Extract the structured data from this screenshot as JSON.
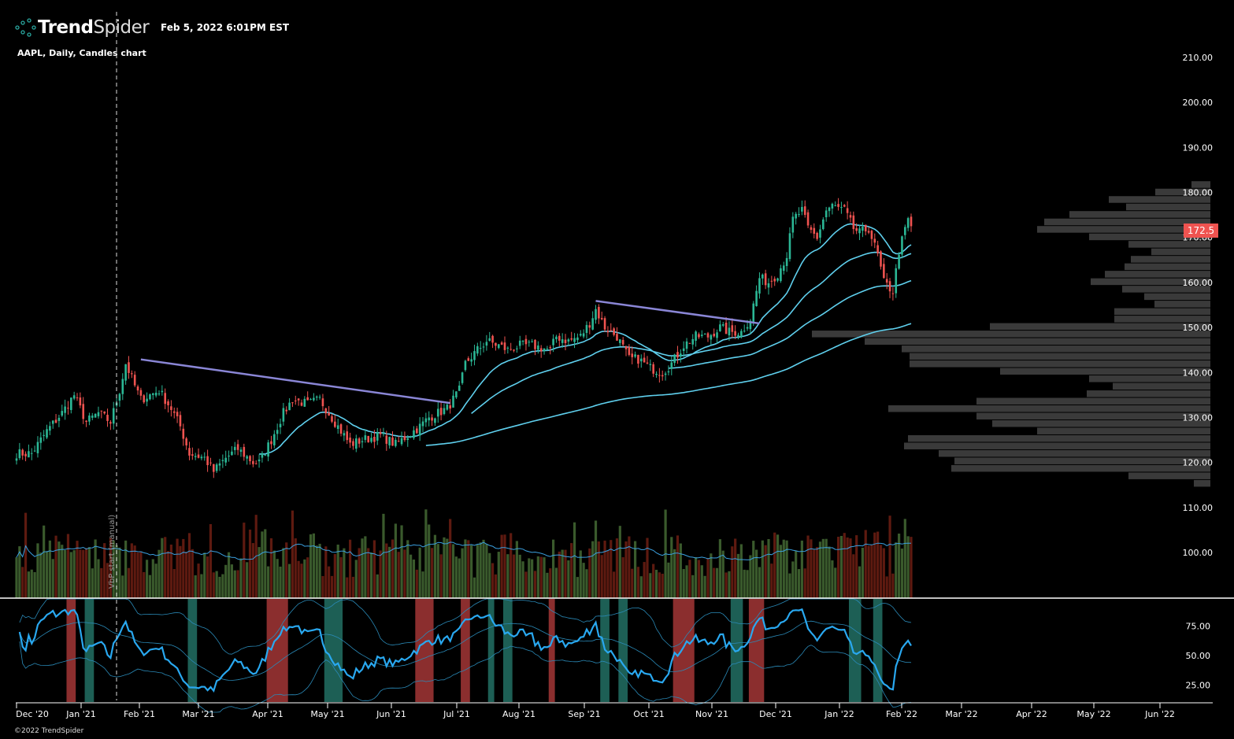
{
  "header": {
    "brand_bold": "Trend",
    "brand_light": "Spider",
    "timestamp": "Feb 5, 2022 6:01PM EST",
    "subtitle": "AAPL, Daily, Candles chart",
    "copyright": "©2022 TrendSpider"
  },
  "colors": {
    "up": "#2bb795",
    "down": "#ef5350",
    "vol_up": "#3a5a2c",
    "vol_down": "#5e1a10",
    "ma": "#5fd0ee",
    "trendline": "#8a86d6",
    "osc": "#29a8f0",
    "vbp": "#3a3a3a",
    "price_badge": "#ef5350",
    "shade_red": "#8b2e2e",
    "shade_teal": "#1d5f55"
  },
  "chart_data": {
    "type": "candlestick",
    "symbol": "AAPL",
    "interval": "Daily",
    "last_price": "172.5",
    "price_axis": {
      "min": 100,
      "max": 210,
      "ticks": [
        "210.00",
        "200.00",
        "190.00",
        "180.00",
        "170.00",
        "160.00",
        "150.00",
        "140.00",
        "130.00",
        "120.00",
        "110.00",
        "100.00"
      ]
    },
    "time_axis": {
      "labels": [
        "Dec '20",
        "Jan '21",
        "Feb '21",
        "Mar '21",
        "Apr '21",
        "May '21",
        "Jun '21",
        "Jul '21",
        "Aug '21",
        "Sep '21",
        "Oct '21",
        "Nov '21",
        "Dec '21",
        "Jan '22",
        "Feb '22",
        "Mar '22",
        "Apr '22",
        "May '22",
        "Jun '22"
      ]
    },
    "trading_days": 296,
    "close_anchors": [
      [
        0,
        122
      ],
      [
        5,
        122
      ],
      [
        10,
        127
      ],
      [
        15,
        131
      ],
      [
        19,
        135
      ],
      [
        23,
        129
      ],
      [
        27,
        131
      ],
      [
        31,
        129
      ],
      [
        34,
        136
      ],
      [
        36,
        142
      ],
      [
        39,
        137
      ],
      [
        41,
        134
      ],
      [
        47,
        136
      ],
      [
        51,
        132
      ],
      [
        54,
        128
      ],
      [
        57,
        122
      ],
      [
        62,
        121
      ],
      [
        65,
        118
      ],
      [
        69,
        121
      ],
      [
        73,
        123
      ],
      [
        78,
        120
      ],
      [
        80,
        120
      ],
      [
        84,
        125
      ],
      [
        88,
        131
      ],
      [
        91,
        134
      ],
      [
        96,
        133
      ],
      [
        100,
        134
      ],
      [
        103,
        131
      ],
      [
        107,
        127
      ],
      [
        110,
        124
      ],
      [
        114,
        125
      ],
      [
        120,
        126
      ],
      [
        125,
        124
      ],
      [
        129,
        126
      ],
      [
        133,
        128
      ],
      [
        136,
        130
      ],
      [
        142,
        132
      ],
      [
        146,
        136
      ],
      [
        148,
        142
      ],
      [
        152,
        145
      ],
      [
        155,
        147
      ],
      [
        159,
        146
      ],
      [
        162,
        145
      ],
      [
        166,
        146
      ],
      [
        170,
        146
      ],
      [
        176,
        145
      ],
      [
        178,
        148
      ],
      [
        182,
        147
      ],
      [
        186,
        148
      ],
      [
        189,
        151
      ],
      [
        191,
        154
      ],
      [
        194,
        150
      ],
      [
        198,
        148
      ],
      [
        202,
        143
      ],
      [
        205,
        143
      ],
      [
        209,
        141
      ],
      [
        213,
        140
      ],
      [
        216,
        142
      ],
      [
        220,
        146
      ],
      [
        224,
        148
      ],
      [
        228,
        148
      ],
      [
        232,
        150
      ],
      [
        235,
        149
      ],
      [
        239,
        149
      ],
      [
        242,
        152
      ],
      [
        245,
        161
      ],
      [
        248,
        160
      ],
      [
        251,
        162
      ],
      [
        254,
        166
      ],
      [
        256,
        174
      ],
      [
        259,
        176
      ],
      [
        261,
        172
      ],
      [
        264,
        170
      ],
      [
        267,
        176
      ],
      [
        269,
        177
      ],
      [
        273,
        176
      ],
      [
        276,
        172
      ],
      [
        278,
        171
      ],
      [
        281,
        172
      ],
      [
        284,
        166
      ],
      [
        286,
        160
      ],
      [
        289,
        158
      ],
      [
        291,
        167
      ],
      [
        294,
        174
      ],
      [
        295,
        172.5
      ]
    ],
    "moving_averages": [
      {
        "period": 20,
        "draw_from": 80
      },
      {
        "period": 50,
        "draw_from": 150
      },
      {
        "period": 100,
        "draw_from": 215
      },
      {
        "period": 200,
        "draw_from": 135
      }
    ],
    "trendlines": [
      {
        "from": [
          41,
          142.9
        ],
        "to": [
          143,
          133.2
        ]
      },
      {
        "from": [
          191,
          155.9
        ],
        "to": [
          245,
          150.9
        ]
      }
    ],
    "volume_by_price": {
      "top_price": 182.5,
      "bin_size": 1.66,
      "relative_volume": [
        24,
        70,
        129,
        107,
        179,
        211,
        220,
        154,
        104,
        75,
        101,
        109,
        134,
        152,
        112,
        84,
        71,
        122,
        122,
        280,
        506,
        439,
        392,
        382,
        382,
        267,
        154,
        124,
        157,
        297,
        409,
        297,
        277,
        220,
        384,
        389,
        345,
        325,
        329,
        104,
        21
      ]
    },
    "vbp_start_label": "VbP start (manual)",
    "vbp_start_day": 33,
    "oscillator": {
      "type": "RSI",
      "period": 14,
      "ticks": [
        "75.00",
        "50.00",
        "25.00"
      ],
      "range": [
        0,
        100
      ],
      "red_zones": [
        [
          17,
          19
        ],
        [
          83,
          89
        ],
        [
          132,
          137
        ],
        [
          147,
          149
        ],
        [
          176,
          177
        ],
        [
          217,
          223
        ],
        [
          242,
          246
        ]
      ],
      "teal_zones": [
        [
          23,
          25
        ],
        [
          57,
          59
        ],
        [
          102,
          107
        ],
        [
          156,
          157
        ],
        [
          161,
          163
        ],
        [
          193,
          195
        ],
        [
          199,
          201
        ],
        [
          236,
          239
        ],
        [
          275,
          278
        ],
        [
          283,
          285
        ]
      ]
    }
  }
}
